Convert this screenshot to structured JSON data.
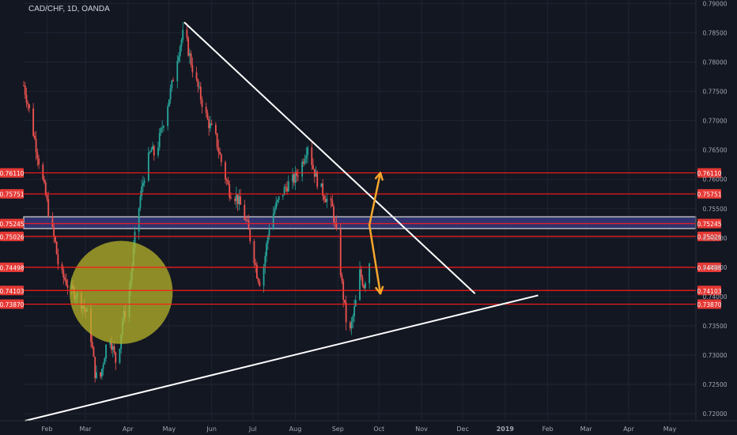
{
  "header": {
    "symbol_line": "CAD/CHF, 1D, OANDA"
  },
  "colors": {
    "background": "#131722",
    "grid": "#1f2433",
    "axis_text": "#a3a6af",
    "up_candle": "#26a69a",
    "down_candle": "#ef5350",
    "level_line": "#ff1a1a",
    "level_label_bg": "#e53935",
    "trendline": "#ffffff",
    "zone_fill": "#3d3f8f",
    "arrow": "#f7a62b",
    "circle": "#b7b42a"
  },
  "chart_data": {
    "type": "candlestick",
    "title": "CAD/CHF, 1D, OANDA",
    "x_axis": {
      "ticks": [
        "Feb",
        "Mar",
        "Apr",
        "May",
        "Jun",
        "Jul",
        "Aug",
        "Sep",
        "Oct",
        "Nov",
        "Dec",
        "2019",
        "Feb",
        "Mar",
        "Apr",
        "May"
      ],
      "range": [
        "2018-01-15",
        "2019-05-20"
      ]
    },
    "y_axis": {
      "ticks": [
        "0.79000",
        "0.78500",
        "0.78000",
        "0.77500",
        "0.77000",
        "0.76500",
        "0.76000",
        "0.75500",
        "0.75000",
        "0.74500",
        "0.74000",
        "0.73500",
        "0.73000",
        "0.72500",
        "0.72000"
      ],
      "range": [
        0.7188,
        0.7906
      ]
    },
    "horizontal_levels": [
      {
        "value": 0.7611,
        "label": "0.76110"
      },
      {
        "value": 0.75751,
        "label": "0.75751"
      },
      {
        "value": 0.75245,
        "label": "0.75245"
      },
      {
        "value": 0.75026,
        "label": "0.75026"
      },
      {
        "value": 0.74498,
        "label": "0.74498"
      },
      {
        "value": 0.74103,
        "label": "0.74103"
      },
      {
        "value": 0.7387,
        "label": "0.73870"
      }
    ],
    "resistance_zone": [
      0.7516,
      0.7536
    ],
    "trendlines": [
      {
        "name": "descending",
        "from": [
          "2018-05-12",
          0.7868
        ],
        "to": [
          "2018-12-10",
          0.7405
        ]
      },
      {
        "name": "ascending",
        "from": [
          "2018-01-16",
          0.7188
        ],
        "to": [
          "2019-01-25",
          0.7402
        ]
      }
    ],
    "projection_arrows": [
      {
        "from": [
          "2018-09-24",
          0.7522
        ],
        "to": [
          "2018-10-02",
          0.7611
        ]
      },
      {
        "from": [
          "2018-09-24",
          0.7522
        ],
        "to": [
          "2018-10-02",
          0.7405
        ]
      }
    ],
    "circle_marker": {
      "center": [
        "2018-03-27",
        0.7407
      ],
      "radius_value": 0.0088
    },
    "price_path": [
      [
        "2018-01-15",
        0.776
      ],
      [
        "2018-01-18",
        0.773
      ],
      [
        "2018-01-22",
        0.768
      ],
      [
        "2018-01-27",
        0.762
      ],
      [
        "2018-02-01",
        0.756
      ],
      [
        "2018-02-04",
        0.752
      ],
      [
        "2018-02-07",
        0.749
      ],
      [
        "2018-02-10",
        0.744
      ],
      [
        "2018-02-14",
        0.743
      ],
      [
        "2018-02-18",
        0.741
      ],
      [
        "2018-02-22",
        0.7405
      ],
      [
        "2018-02-26",
        0.739
      ],
      [
        "2018-03-02",
        0.737
      ],
      [
        "2018-03-05",
        0.733
      ],
      [
        "2018-03-08",
        0.727
      ],
      [
        "2018-03-11",
        0.725
      ],
      [
        "2018-03-14",
        0.729
      ],
      [
        "2018-03-18",
        0.734
      ],
      [
        "2018-03-21",
        0.731
      ],
      [
        "2018-03-24",
        0.728
      ],
      [
        "2018-03-28",
        0.736
      ],
      [
        "2018-03-31",
        0.738
      ],
      [
        "2018-04-03",
        0.743
      ],
      [
        "2018-04-06",
        0.75
      ],
      [
        "2018-04-10",
        0.757
      ],
      [
        "2018-04-14",
        0.762
      ],
      [
        "2018-04-18",
        0.765
      ],
      [
        "2018-04-21",
        0.764
      ],
      [
        "2018-04-25",
        0.768
      ],
      [
        "2018-04-29",
        0.772
      ],
      [
        "2018-05-03",
        0.776
      ],
      [
        "2018-05-06",
        0.78
      ],
      [
        "2018-05-09",
        0.783
      ],
      [
        "2018-05-12",
        0.7855
      ],
      [
        "2018-05-15",
        0.782
      ],
      [
        "2018-05-19",
        0.778
      ],
      [
        "2018-05-24",
        0.774
      ],
      [
        "2018-05-29",
        0.77
      ],
      [
        "2018-06-04",
        0.767
      ],
      [
        "2018-06-09",
        0.762
      ],
      [
        "2018-06-14",
        0.758
      ],
      [
        "2018-06-19",
        0.757
      ],
      [
        "2018-06-23",
        0.755
      ],
      [
        "2018-06-27",
        0.752
      ],
      [
        "2018-07-01",
        0.748
      ],
      [
        "2018-07-04",
        0.744
      ],
      [
        "2018-07-07",
        0.742
      ],
      [
        "2018-07-10",
        0.747
      ],
      [
        "2018-07-13",
        0.752
      ],
      [
        "2018-07-17",
        0.755
      ],
      [
        "2018-07-21",
        0.757
      ],
      [
        "2018-07-26",
        0.759
      ],
      [
        "2018-07-31",
        0.76
      ],
      [
        "2018-08-05",
        0.762
      ],
      [
        "2018-08-10",
        0.766
      ],
      [
        "2018-08-14",
        0.762
      ],
      [
        "2018-08-18",
        0.759
      ],
      [
        "2018-08-23",
        0.757
      ],
      [
        "2018-08-28",
        0.755
      ],
      [
        "2018-09-01",
        0.749
      ],
      [
        "2018-09-04",
        0.742
      ],
      [
        "2018-09-07",
        0.736
      ],
      [
        "2018-09-10",
        0.734
      ],
      [
        "2018-09-14",
        0.739
      ],
      [
        "2018-09-17",
        0.744
      ],
      [
        "2018-09-20",
        0.742
      ],
      [
        "2018-09-24",
        0.746
      ]
    ]
  }
}
